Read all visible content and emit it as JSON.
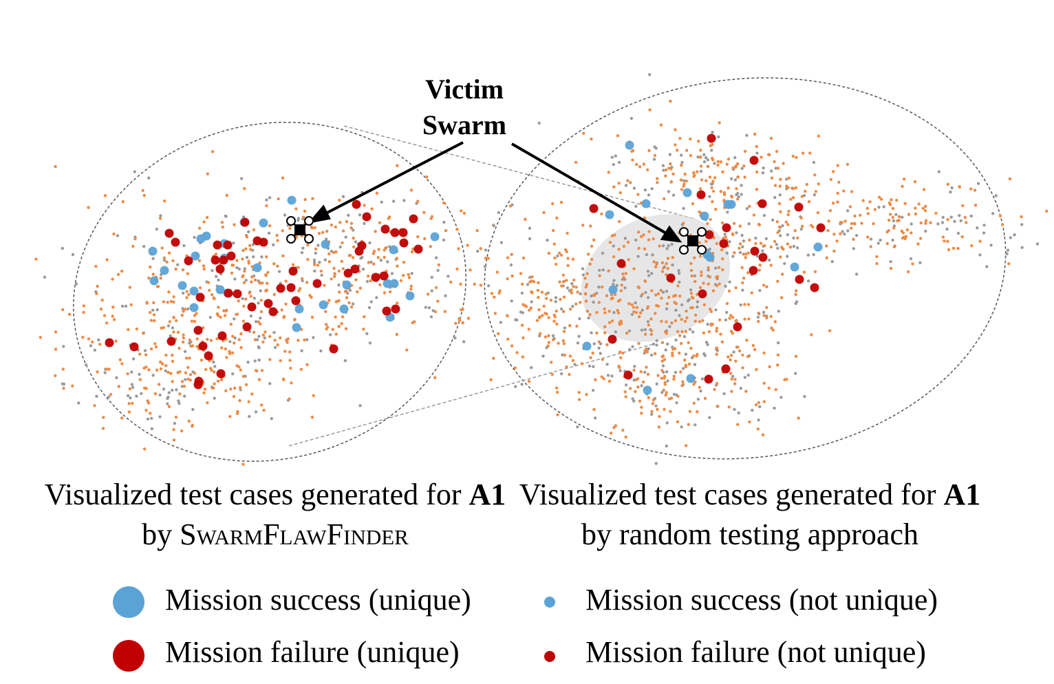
{
  "colors": {
    "success": "#5ba3d6",
    "failure": "#c00000",
    "orange": "#ee8a45",
    "gray": "#9a9a9a"
  },
  "callout": {
    "line1": "Victim",
    "line2": "Swarm"
  },
  "captions": {
    "left": {
      "pre": "Visualized test cases generated for ",
      "bold": "A1",
      "mid": " by ",
      "sc": "SwarmFlawFinder"
    },
    "right": {
      "pre": "Visualized test cases generated for ",
      "bold": "A1",
      "post": " by random testing approach"
    }
  },
  "legend": [
    {
      "label": "Mission success (unique)",
      "marker": "success-large"
    },
    {
      "label": "Mission failure (unique)",
      "marker": "failure-large"
    },
    {
      "label": "Mission success (not unique)",
      "marker": "success-small"
    },
    {
      "label": "Mission failure (not unique)",
      "marker": "failure-small"
    }
  ],
  "chart_data": [
    {
      "type": "scatter",
      "panel": "left",
      "series": [
        {
          "name": "Mission success (unique)",
          "points": [
            [
              424,
              291
            ],
            [
              383,
              324
            ],
            [
              300,
              343
            ],
            [
              292,
              347
            ],
            [
              222,
              365
            ],
            [
              284,
              372
            ],
            [
              326,
              354
            ],
            [
              326,
              375
            ],
            [
              239,
              393
            ],
            [
              224,
              408
            ],
            [
              265,
              415
            ],
            [
              282,
              423
            ],
            [
              320,
              421
            ],
            [
              374,
              389
            ],
            [
              473,
              355
            ],
            [
              572,
              363
            ],
            [
              632,
              344
            ],
            [
              504,
              414
            ],
            [
              563,
              412
            ],
            [
              573,
              412
            ],
            [
              596,
              430
            ],
            [
              567,
              461
            ],
            [
              500,
              449
            ],
            [
              470,
              443
            ],
            [
              435,
              449
            ],
            [
              431,
              476
            ],
            [
              282,
              447
            ],
            [
              331,
              426
            ],
            [
              355,
              323
            ]
          ]
        },
        {
          "name": "Mission failure (unique)",
          "points": [
            [
              246,
              339
            ],
            [
              255,
              352
            ],
            [
              316,
              356
            ],
            [
              331,
              356
            ],
            [
              336,
              372
            ],
            [
              313,
              378
            ],
            [
              325,
              378
            ],
            [
              274,
              379
            ],
            [
              320,
              391
            ],
            [
              374,
              350
            ],
            [
              383,
              352
            ],
            [
              518,
              297
            ],
            [
              533,
              315
            ],
            [
              601,
              318
            ],
            [
              560,
              333
            ],
            [
              574,
              338
            ],
            [
              586,
              338
            ],
            [
              587,
              353
            ],
            [
              608,
              362
            ],
            [
              526,
              357
            ],
            [
              522,
              365
            ],
            [
              506,
              397
            ],
            [
              516,
              391
            ],
            [
              546,
              403
            ],
            [
              558,
              401
            ],
            [
              461,
              412
            ],
            [
              426,
              394
            ],
            [
              408,
              419
            ],
            [
              423,
              418
            ],
            [
              345,
              427
            ],
            [
              291,
              432
            ],
            [
              390,
              441
            ],
            [
              366,
              446
            ],
            [
              397,
              453
            ],
            [
              430,
              437
            ],
            [
              562,
              452
            ],
            [
              575,
              449
            ],
            [
              485,
              507
            ],
            [
              359,
              475
            ],
            [
              323,
              488
            ],
            [
              288,
              480
            ],
            [
              249,
              496
            ],
            [
              195,
              504
            ],
            [
              159,
              498
            ],
            [
              295,
              503
            ],
            [
              303,
              517
            ],
            [
              321,
              543
            ],
            [
              289,
              554
            ],
            [
              288,
              559
            ],
            [
              332,
              426
            ],
            [
              356,
              323
            ]
          ]
        },
        {
          "name": "Mission success (not unique)",
          "count": 250
        },
        {
          "name": "Mission failure (not unique)",
          "count": 560
        }
      ]
    },
    {
      "type": "scatter",
      "panel": "right",
      "series": [
        {
          "name": "Mission success (unique)",
          "points": [
            [
              915,
              211
            ],
            [
              999,
              280
            ],
            [
              939,
              296
            ],
            [
              886,
              312
            ],
            [
              1024,
              314
            ],
            [
              1058,
              297
            ],
            [
              1063,
              297
            ],
            [
              1032,
              374
            ],
            [
              1028,
              370
            ],
            [
              1189,
              359
            ],
            [
              1155,
              388
            ],
            [
              891,
              421
            ],
            [
              853,
              503
            ],
            [
              941,
              567
            ],
            [
              1004,
              550
            ]
          ]
        },
        {
          "name": "Mission failure (unique)",
          "points": [
            [
              1034,
              201
            ],
            [
              1096,
              233
            ],
            [
              1019,
              283
            ],
            [
              1108,
              296
            ],
            [
              1161,
              301
            ],
            [
              863,
              303
            ],
            [
              1056,
              331
            ],
            [
              1031,
              341
            ],
            [
              1052,
              354
            ],
            [
              1193,
              331
            ],
            [
              1097,
              365
            ],
            [
              1109,
              374
            ],
            [
              1095,
              393
            ],
            [
              1162,
              406
            ],
            [
              1184,
              418
            ],
            [
              903,
              383
            ],
            [
              975,
              404
            ],
            [
              1021,
              427
            ],
            [
              1072,
              475
            ],
            [
              890,
              493
            ],
            [
              913,
              545
            ],
            [
              1030,
              551
            ],
            [
              1055,
              536
            ]
          ]
        },
        {
          "name": "Mission success (not unique)",
          "count": 400
        },
        {
          "name": "Mission failure (not unique)",
          "count": 820
        }
      ]
    }
  ]
}
